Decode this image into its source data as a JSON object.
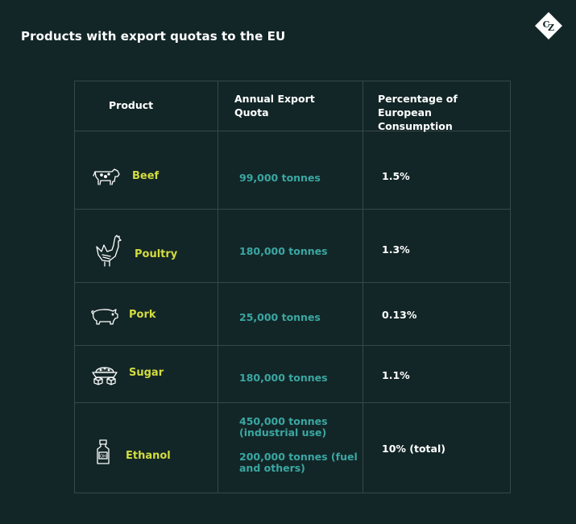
{
  "title": "Products with export quotas to the EU",
  "logo": {
    "letters": "CZ",
    "icon": "cz-diamond-logo"
  },
  "colors": {
    "background": "#132627",
    "product": "#d3dc3f",
    "quota": "#3aa7a3",
    "grid": "#364746"
  },
  "headers": {
    "product": "Product",
    "quota_line1": "Annual Export",
    "quota_line2": "Quota",
    "pct_line1": "Percentage of",
    "pct_line2": "European Consumption"
  },
  "rows": [
    {
      "product": "Beef",
      "icon": "cow-icon",
      "quota": "99,000 tonnes",
      "pct": "1.5%"
    },
    {
      "product": "Poultry",
      "icon": "chicken-icon",
      "quota": "180,000 tonnes",
      "pct": "1.3%"
    },
    {
      "product": "Pork",
      "icon": "pig-icon",
      "quota": "25,000 tonnes",
      "pct": "0.13%"
    },
    {
      "product": "Sugar",
      "icon": "sugar-icon",
      "quota": "180,000 tonnes",
      "pct": "1.1%"
    },
    {
      "product": "Ethanol",
      "icon": "ethanol-bottle-icon",
      "quota_a_line1": "450,000 tonnes",
      "quota_a_line2": "(industrial use)",
      "quota_b_line1": "200,000 tonnes (fuel",
      "quota_b_line2": "and others)",
      "pct": "10% (total)"
    }
  ]
}
